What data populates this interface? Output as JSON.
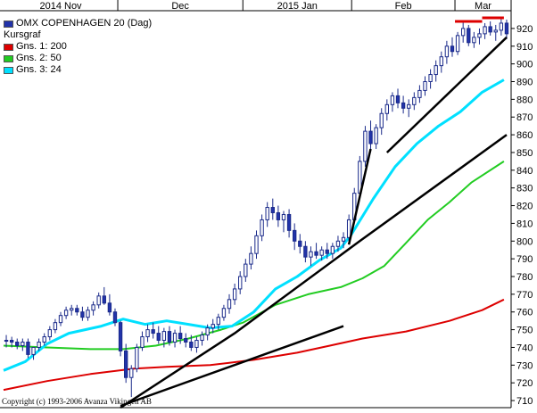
{
  "chart_data": {
    "type": "candlestick",
    "title": "OMX COPENHAGEN 20 (Dag)",
    "price_label": "Kursgraf",
    "x_ticks": [
      "2014 Nov",
      "Dec",
      "2015 Jan",
      "Feb",
      "Mar"
    ],
    "y_ticks": [
      710,
      720,
      730,
      740,
      750,
      760,
      770,
      780,
      790,
      800,
      810,
      820,
      830,
      840,
      850,
      860,
      870,
      880,
      890,
      900,
      910,
      920
    ],
    "ylim": [
      706,
      927
    ],
    "n_bars": 93,
    "month_start_index": {
      "Dec": 21,
      "2015 Jan": 44,
      "Feb": 64,
      "Mar": 83
    },
    "moving_averages": [
      {
        "name": "Gns. 1: 200",
        "color": "#dd0000",
        "points": [
          [
            0,
            716
          ],
          [
            8,
            721
          ],
          [
            16,
            725
          ],
          [
            24,
            728
          ],
          [
            30,
            729
          ],
          [
            38,
            730
          ],
          [
            46,
            733
          ],
          [
            54,
            737
          ],
          [
            60,
            741
          ],
          [
            66,
            745
          ],
          [
            74,
            749
          ],
          [
            82,
            755
          ],
          [
            88,
            761
          ],
          [
            92,
            767
          ]
        ]
      },
      {
        "name": "Gns. 2: 50",
        "color": "#22cc22",
        "points": [
          [
            0,
            741
          ],
          [
            8,
            740
          ],
          [
            16,
            739
          ],
          [
            22,
            739
          ],
          [
            28,
            741
          ],
          [
            34,
            745
          ],
          [
            40,
            750
          ],
          [
            44,
            754
          ],
          [
            50,
            764
          ],
          [
            56,
            770
          ],
          [
            62,
            774
          ],
          [
            66,
            779
          ],
          [
            70,
            786
          ],
          [
            74,
            799
          ],
          [
            78,
            812
          ],
          [
            82,
            822
          ],
          [
            86,
            833
          ],
          [
            92,
            845
          ]
        ]
      },
      {
        "name": "Gns. 3: 24",
        "color": "#00e0ff",
        "points": [
          [
            0,
            727
          ],
          [
            4,
            732
          ],
          [
            8,
            742
          ],
          [
            12,
            748
          ],
          [
            18,
            752
          ],
          [
            22,
            756
          ],
          [
            26,
            753
          ],
          [
            30,
            755
          ],
          [
            34,
            753
          ],
          [
            38,
            751
          ],
          [
            42,
            752
          ],
          [
            46,
            760
          ],
          [
            50,
            773
          ],
          [
            54,
            780
          ],
          [
            58,
            789
          ],
          [
            62,
            796
          ],
          [
            64,
            804
          ],
          [
            68,
            824
          ],
          [
            72,
            842
          ],
          [
            76,
            855
          ],
          [
            80,
            865
          ],
          [
            84,
            873
          ],
          [
            88,
            884
          ],
          [
            92,
            891
          ]
        ]
      }
    ],
    "trend_lines": [
      {
        "color": "#000000",
        "points": [
          [
            21,
            706
          ],
          [
            42,
            748
          ],
          [
            65,
            800
          ],
          [
            92,
            860
          ]
        ]
      },
      {
        "color": "#000000",
        "points": [
          [
            21,
            707
          ],
          [
            62,
            752
          ]
        ]
      },
      {
        "color": "#000000",
        "points": [
          [
            63,
            798
          ],
          [
            67,
            852
          ]
        ]
      },
      {
        "color": "#000000",
        "points": [
          [
            70,
            850
          ],
          [
            92,
            915
          ]
        ]
      }
    ],
    "resistance_marks": [
      {
        "color": "#dd0000",
        "x": [
          83,
          87
        ],
        "y": 924
      },
      {
        "color": "#dd0000",
        "x": [
          88,
          91
        ],
        "y": 926
      }
    ],
    "candles": [
      [
        744,
        747,
        740,
        744
      ],
      [
        744,
        746,
        740,
        743
      ],
      [
        743,
        745,
        739,
        741
      ],
      [
        741,
        745,
        738,
        743
      ],
      [
        743,
        745,
        734,
        736
      ],
      [
        736,
        740,
        733,
        740
      ],
      [
        740,
        745,
        738,
        743
      ],
      [
        743,
        748,
        741,
        746
      ],
      [
        746,
        752,
        744,
        750
      ],
      [
        750,
        756,
        748,
        754
      ],
      [
        754,
        760,
        752,
        758
      ],
      [
        758,
        763,
        756,
        761
      ],
      [
        761,
        764,
        758,
        762
      ],
      [
        762,
        764,
        758,
        760
      ],
      [
        760,
        763,
        755,
        757
      ],
      [
        757,
        763,
        755,
        761
      ],
      [
        761,
        766,
        758,
        764
      ],
      [
        764,
        771,
        762,
        769
      ],
      [
        769,
        774,
        764,
        765
      ],
      [
        765,
        770,
        758,
        760
      ],
      [
        760,
        762,
        752,
        754
      ],
      [
        754,
        755,
        735,
        738
      ],
      [
        738,
        742,
        720,
        723
      ],
      [
        723,
        730,
        712,
        728
      ],
      [
        728,
        742,
        726,
        740
      ],
      [
        740,
        749,
        738,
        746
      ],
      [
        746,
        753,
        743,
        750
      ],
      [
        750,
        754,
        745,
        748
      ],
      [
        748,
        752,
        742,
        744
      ],
      [
        744,
        751,
        740,
        749
      ],
      [
        749,
        752,
        741,
        743
      ],
      [
        743,
        750,
        740,
        748
      ],
      [
        748,
        752,
        742,
        745
      ],
      [
        745,
        748,
        740,
        743
      ],
      [
        743,
        747,
        738,
        740
      ],
      [
        740,
        746,
        737,
        744
      ],
      [
        744,
        749,
        741,
        747
      ],
      [
        747,
        753,
        744,
        751
      ],
      [
        751,
        756,
        748,
        753
      ],
      [
        753,
        759,
        750,
        757
      ],
      [
        757,
        764,
        755,
        762
      ],
      [
        762,
        770,
        759,
        767
      ],
      [
        767,
        776,
        764,
        773
      ],
      [
        773,
        783,
        770,
        780
      ],
      [
        780,
        790,
        777,
        787
      ],
      [
        787,
        797,
        784,
        793
      ],
      [
        793,
        806,
        790,
        803
      ],
      [
        803,
        815,
        800,
        812
      ],
      [
        812,
        822,
        808,
        819
      ],
      [
        819,
        824,
        812,
        816
      ],
      [
        816,
        820,
        808,
        812
      ],
      [
        812,
        817,
        805,
        815
      ],
      [
        815,
        818,
        802,
        806
      ],
      [
        806,
        810,
        795,
        800
      ],
      [
        800,
        804,
        793,
        797
      ],
      [
        797,
        800,
        788,
        791
      ],
      [
        791,
        797,
        786,
        794
      ],
      [
        794,
        799,
        790,
        792
      ],
      [
        792,
        797,
        789,
        795
      ],
      [
        795,
        799,
        790,
        793
      ],
      [
        793,
        799,
        790,
        797
      ],
      [
        797,
        803,
        794,
        800
      ],
      [
        800,
        805,
        796,
        802
      ],
      [
        802,
        815,
        800,
        812
      ],
      [
        812,
        830,
        810,
        827
      ],
      [
        827,
        848,
        825,
        845
      ],
      [
        845,
        865,
        842,
        862
      ],
      [
        862,
        868,
        850,
        855
      ],
      [
        855,
        866,
        852,
        864
      ],
      [
        864,
        875,
        860,
        872
      ],
      [
        872,
        880,
        868,
        877
      ],
      [
        877,
        884,
        873,
        882
      ],
      [
        882,
        886,
        875,
        878
      ],
      [
        878,
        882,
        872,
        875
      ],
      [
        875,
        880,
        870,
        877
      ],
      [
        877,
        884,
        874,
        881
      ],
      [
        881,
        888,
        878,
        885
      ],
      [
        885,
        893,
        882,
        890
      ],
      [
        890,
        897,
        886,
        894
      ],
      [
        894,
        902,
        890,
        899
      ],
      [
        899,
        907,
        895,
        904
      ],
      [
        904,
        913,
        900,
        910
      ],
      [
        910,
        915,
        904,
        907
      ],
      [
        907,
        918,
        905,
        916
      ],
      [
        916,
        924,
        912,
        920
      ],
      [
        920,
        922,
        910,
        912
      ],
      [
        912,
        918,
        909,
        915
      ],
      [
        915,
        920,
        911,
        917
      ],
      [
        917,
        923,
        914,
        921
      ],
      [
        921,
        924,
        916,
        918
      ],
      [
        918,
        922,
        913,
        919
      ],
      [
        919,
        926,
        916,
        923
      ],
      [
        923,
        925,
        914,
        917
      ]
    ]
  },
  "legend": {
    "title": "OMX COPENHAGEN 20 (Dag)",
    "items": [
      {
        "label": "Kursgraf",
        "color": ""
      },
      {
        "label": "Gns. 1: 200",
        "color": "#dd0000"
      },
      {
        "label": "Gns. 2: 50",
        "color": "#22cc22"
      },
      {
        "label": "Gns. 3: 24",
        "color": "#00e0ff"
      }
    ]
  },
  "copyright": "Copyright (c) 1993-2006 Avanza Vikingen AB"
}
